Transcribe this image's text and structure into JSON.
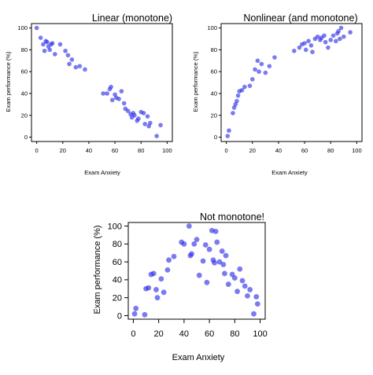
{
  "chart_data": [
    {
      "type": "scatter",
      "title": "Linear (monotone)",
      "title_color": "#000000",
      "xlabel": "Exam Anxiety",
      "ylabel": "Exam performance (%)",
      "xlim": [
        0,
        100
      ],
      "ylim": [
        0,
        100
      ],
      "xticks": [
        "0",
        "20",
        "40",
        "60",
        "80",
        "100"
      ],
      "yticks": [
        "0",
        "20",
        "40",
        "60",
        "80",
        "100"
      ],
      "point_color": "#2a2ae6",
      "grid": false,
      "x": [
        0,
        3,
        5,
        6,
        7,
        8,
        9,
        10,
        11,
        12,
        14,
        18,
        22,
        24,
        25,
        27,
        30,
        33,
        37,
        51,
        54,
        56,
        57,
        58,
        60,
        61,
        63,
        65,
        67,
        68,
        70,
        72,
        73,
        74,
        75,
        77,
        78,
        80,
        82,
        83,
        85,
        86,
        87,
        92,
        95
      ],
      "y": [
        100,
        91,
        85,
        79,
        88,
        87,
        83,
        80,
        85,
        86,
        76,
        85,
        79,
        75,
        67,
        71,
        64,
        65,
        62,
        40,
        40,
        44,
        46,
        34,
        39,
        36,
        35,
        42,
        31,
        26,
        24,
        21,
        18,
        22,
        20,
        15,
        17,
        23,
        22,
        12,
        19,
        10,
        13,
        1,
        11
      ]
    },
    {
      "type": "scatter",
      "title": "Nonlinear (and monotone)",
      "title_color": "#000000",
      "xlabel": "Exam Anxiety",
      "ylabel": "Exam performance (%)",
      "xlim": [
        0,
        100
      ],
      "ylim": [
        0,
        100
      ],
      "xticks": [
        "0",
        "20",
        "40",
        "60",
        "80",
        "100"
      ],
      "yticks": [
        "0",
        "20",
        "40",
        "60",
        "80",
        "100"
      ],
      "point_color": "#2a2ae6",
      "grid": false,
      "x": [
        1,
        2,
        5,
        6,
        7,
        8,
        9,
        10,
        12,
        14,
        18,
        20,
        22,
        24,
        25,
        27,
        30,
        33,
        37,
        52,
        56,
        58,
        60,
        61,
        63,
        65,
        66,
        68,
        70,
        72,
        73,
        75,
        76,
        78,
        80,
        82,
        84,
        85,
        86,
        87,
        88,
        90,
        95
      ],
      "y": [
        1,
        6,
        22,
        27,
        30,
        33,
        38,
        42,
        43,
        46,
        47,
        53,
        62,
        70,
        60,
        67,
        59,
        65,
        73,
        79,
        82,
        85,
        86,
        80,
        88,
        84,
        78,
        90,
        92,
        89,
        91,
        93,
        87,
        82,
        89,
        93,
        88,
        95,
        97,
        90,
        100,
        92,
        96
      ]
    },
    {
      "type": "scatter",
      "title": "Not monotone!",
      "title_color": "#e8170c",
      "xlabel": "Exam Anxiety",
      "ylabel": "Exam performance (%)",
      "xlim": [
        0,
        100
      ],
      "ylim": [
        0,
        100
      ],
      "xticks": [
        "0",
        "20",
        "40",
        "60",
        "80",
        "100"
      ],
      "yticks": [
        "0",
        "20",
        "40",
        "60",
        "80",
        "100"
      ],
      "point_color": "#2a2ae6",
      "grid": false,
      "x": [
        1,
        2,
        9,
        10,
        12,
        14,
        16,
        18,
        19,
        22,
        24,
        27,
        28,
        32,
        38,
        40,
        44,
        45,
        46,
        48,
        50,
        52,
        55,
        57,
        58,
        60,
        62,
        63,
        64,
        65,
        66,
        68,
        70,
        71,
        72,
        73,
        75,
        78,
        80,
        82,
        84,
        86,
        88,
        90,
        92,
        95,
        97,
        98
      ],
      "y": [
        2,
        8,
        1,
        30,
        31,
        46,
        47,
        29,
        20,
        41,
        26,
        51,
        62,
        66,
        82,
        80,
        100,
        67,
        69,
        80,
        85,
        45,
        61,
        79,
        37,
        74,
        95,
        62,
        59,
        94,
        82,
        60,
        72,
        57,
        47,
        67,
        35,
        46,
        42,
        27,
        52,
        39,
        33,
        22,
        29,
        2,
        21,
        13
      ]
    }
  ]
}
